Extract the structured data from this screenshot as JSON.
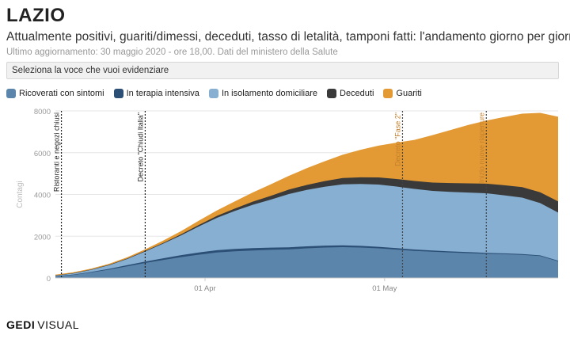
{
  "header": {
    "title": "LAZIO",
    "subtitle": "Attualmente positivi, guariti/dimessi, deceduti, tasso di letalità, tamponi fatti: l'andamento giorno per giorno",
    "updated": "Ultimo aggiornamento: 30 maggio 2020 - ore 18,00. Dati del ministero della Salute"
  },
  "selector": {
    "label": "Seleziona la voce che vuoi evidenziare"
  },
  "legend": [
    {
      "label": "Ricoverati con sintomi",
      "color": "#5b85aa"
    },
    {
      "label": "In terapia intensiva",
      "color": "#2c4f76"
    },
    {
      "label": "In isolamento domiciliare",
      "color": "#86afd2"
    },
    {
      "label": "Deceduti",
      "color": "#3a3a3a"
    },
    {
      "label": "Guariti",
      "color": "#e39a35"
    }
  ],
  "footer": {
    "brand_main": "GEDI",
    "brand_sub": "VISUAL"
  },
  "chart_data": {
    "type": "area",
    "stacked": true,
    "ylabel": "Contagi",
    "ylim": [
      0,
      8000
    ],
    "yticks": [
      0,
      2000,
      4000,
      6000,
      8000
    ],
    "xrange": [
      "2020-03-07",
      "2020-05-30"
    ],
    "xticks": [
      {
        "date": "2020-04-01",
        "label": "01 Apr"
      },
      {
        "date": "2020-05-01",
        "label": "01 May"
      }
    ],
    "grid": true,
    "x": [
      "2020-03-07",
      "2020-03-10",
      "2020-03-13",
      "2020-03-16",
      "2020-03-19",
      "2020-03-22",
      "2020-03-25",
      "2020-03-28",
      "2020-03-31",
      "2020-04-03",
      "2020-04-06",
      "2020-04-09",
      "2020-04-12",
      "2020-04-15",
      "2020-04-18",
      "2020-04-21",
      "2020-04-24",
      "2020-04-27",
      "2020-04-30",
      "2020-05-03",
      "2020-05-06",
      "2020-05-09",
      "2020-05-12",
      "2020-05-15",
      "2020-05-18",
      "2020-05-21",
      "2020-05-24",
      "2020-05-27",
      "2020-05-30"
    ],
    "series": [
      {
        "name": "Ricoverati con sintomi",
        "color": "#5b85aa",
        "values": [
          80,
          150,
          270,
          400,
          560,
          720,
          860,
          1000,
          1120,
          1220,
          1280,
          1320,
          1350,
          1370,
          1420,
          1460,
          1480,
          1460,
          1420,
          1360,
          1300,
          1260,
          1220,
          1190,
          1160,
          1140,
          1110,
          1050,
          800
        ]
      },
      {
        "name": "In terapia intensiva",
        "color": "#2c4f76",
        "values": [
          10,
          15,
          25,
          40,
          55,
          70,
          85,
          95,
          105,
          110,
          110,
          108,
          105,
          100,
          95,
          90,
          85,
          80,
          75,
          70,
          65,
          60,
          55,
          50,
          45,
          40,
          38,
          35,
          30
        ]
      },
      {
        "name": "In isolamento domiciliare",
        "color": "#86afd2",
        "values": [
          40,
          70,
          110,
          180,
          300,
          480,
          700,
          950,
          1250,
          1550,
          1820,
          2080,
          2300,
          2550,
          2700,
          2820,
          2920,
          2960,
          2980,
          2950,
          2900,
          2850,
          2850,
          2850,
          2850,
          2780,
          2700,
          2500,
          2300
        ]
      },
      {
        "name": "Deceduti",
        "color": "#3a3a3a",
        "values": [
          3,
          5,
          8,
          12,
          18,
          25,
          35,
          50,
          70,
          95,
          120,
          150,
          180,
          210,
          240,
          270,
          300,
          320,
          340,
          360,
          380,
          400,
          420,
          440,
          460,
          480,
          500,
          520,
          540
        ]
      },
      {
        "name": "Guariti",
        "color": "#e39a35",
        "values": [
          10,
          15,
          20,
          30,
          40,
          60,
          90,
          130,
          180,
          240,
          320,
          420,
          530,
          640,
          780,
          930,
          1100,
          1300,
          1500,
          1720,
          1950,
          2250,
          2520,
          2780,
          3000,
          3250,
          3500,
          3780,
          4030
        ]
      }
    ],
    "annotations": [
      {
        "date": "2020-03-08",
        "label": "Ristoranti e negozi chiusi",
        "style": "dark"
      },
      {
        "date": "2020-03-22",
        "label": "Decreto \"Chiudi Italia\"",
        "style": "dark"
      },
      {
        "date": "2020-05-04",
        "label": "Decreto \"Fase 2\"",
        "style": "light"
      },
      {
        "date": "2020-05-18",
        "label": "Inizio nuove riaperture",
        "style": "light"
      }
    ]
  }
}
